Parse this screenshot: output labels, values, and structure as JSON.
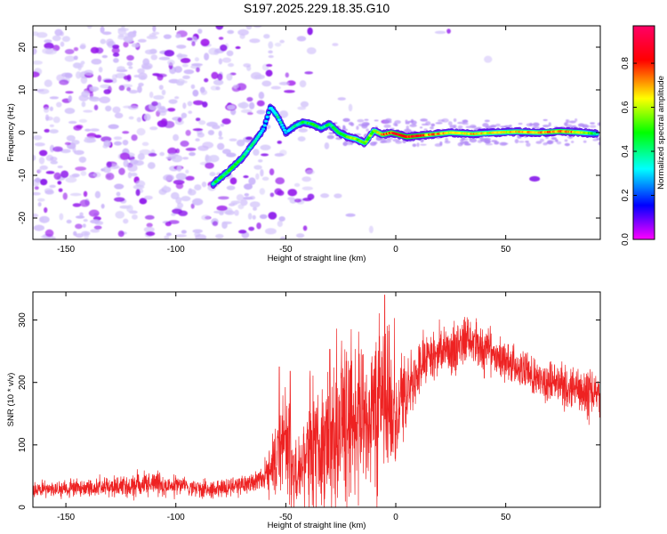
{
  "title": "S197.2025.229.18.35.G10",
  "chart_data": [
    {
      "type": "heatmap",
      "name": "spectrogram",
      "xlabel": "Height of straight line (km)",
      "ylabel": "Frequency (Hz)",
      "xlim": [
        -165,
        93
      ],
      "ylim": [
        -25,
        25
      ],
      "xticks": [
        -150,
        -100,
        -50,
        0,
        50
      ],
      "yticks": [
        -20,
        -10,
        0,
        10,
        20
      ],
      "colorbar": {
        "label": "Normalized spectral amplitude",
        "range": [
          0.0,
          0.97
        ],
        "ticks": [
          0.0,
          0.2,
          0.4,
          0.6,
          0.8
        ],
        "colormap": [
          "#ff00ff",
          "#0000ff",
          "#00ffff",
          "#00ff00",
          "#ffff00",
          "#ff0000",
          "#ff0066"
        ]
      },
      "ridge": {
        "x": [
          -83,
          -76,
          -70,
          -64,
          -60,
          -57,
          -54,
          -50,
          -46,
          -42,
          -38,
          -34,
          -30,
          -26,
          -22,
          -18,
          -14,
          -10,
          -6,
          -2,
          5,
          15,
          25,
          35,
          45,
          55,
          65,
          75,
          85,
          92
        ],
        "y": [
          -12,
          -9,
          -6,
          -2,
          1,
          6,
          4,
          0,
          1.5,
          2.5,
          2,
          1,
          2,
          0,
          -1,
          -1.5,
          -2.5,
          0.5,
          -0.5,
          0,
          -1,
          -0.5,
          0,
          -0.3,
          0,
          0.2,
          0,
          0.3,
          0,
          -0.3
        ],
        "amplitude": [
          0.45,
          0.5,
          0.45,
          0.4,
          0.3,
          0.35,
          0.4,
          0.3,
          0.4,
          0.45,
          0.5,
          0.4,
          0.45,
          0.5,
          0.55,
          0.6,
          0.55,
          0.6,
          0.75,
          0.8,
          0.92,
          0.75,
          0.7,
          0.7,
          0.65,
          0.7,
          0.7,
          0.8,
          0.65,
          0.4
        ]
      }
    },
    {
      "type": "line",
      "name": "snr",
      "xlabel": "Height of straight line (km)",
      "ylabel": "SNR (10 * v/v)",
      "xlim": [
        -165,
        93
      ],
      "ylim": [
        0,
        345
      ],
      "xticks": [
        -150,
        -100,
        -50,
        0,
        50
      ],
      "yticks": [
        0,
        100,
        200,
        300
      ],
      "color": "#ee2222",
      "envelope": {
        "x": [
          -165,
          -150,
          -130,
          -110,
          -100,
          -90,
          -80,
          -70,
          -60,
          -55,
          -52,
          -50,
          -48,
          -45,
          -42,
          -40,
          -35,
          -30,
          -25,
          -20,
          -15,
          -10,
          -5,
          0,
          5,
          10,
          15,
          20,
          25,
          30,
          33,
          36,
          40,
          45,
          50,
          55,
          60,
          65,
          70,
          75,
          80,
          85,
          90,
          93
        ],
        "center": [
          28,
          30,
          33,
          38,
          35,
          30,
          30,
          35,
          45,
          70,
          90,
          110,
          80,
          40,
          70,
          100,
          90,
          120,
          130,
          140,
          150,
          160,
          170,
          160,
          190,
          220,
          240,
          250,
          250,
          258,
          270,
          262,
          250,
          245,
          235,
          225,
          215,
          205,
          200,
          195,
          190,
          185,
          180,
          175
        ],
        "spread": [
          10,
          10,
          12,
          16,
          12,
          10,
          12,
          12,
          15,
          40,
          60,
          80,
          60,
          30,
          60,
          90,
          80,
          90,
          100,
          100,
          90,
          90,
          120,
          80,
          45,
          40,
          35,
          30,
          35,
          30,
          30,
          30,
          30,
          25,
          25,
          25,
          25,
          25,
          25,
          25,
          25,
          25,
          30,
          25
        ]
      },
      "spikes": [
        {
          "x": -53,
          "y": 225
        },
        {
          "x": -48,
          "y": 218
        },
        {
          "x": -30,
          "y": 253
        },
        {
          "x": -5,
          "y": 340
        }
      ]
    }
  ]
}
